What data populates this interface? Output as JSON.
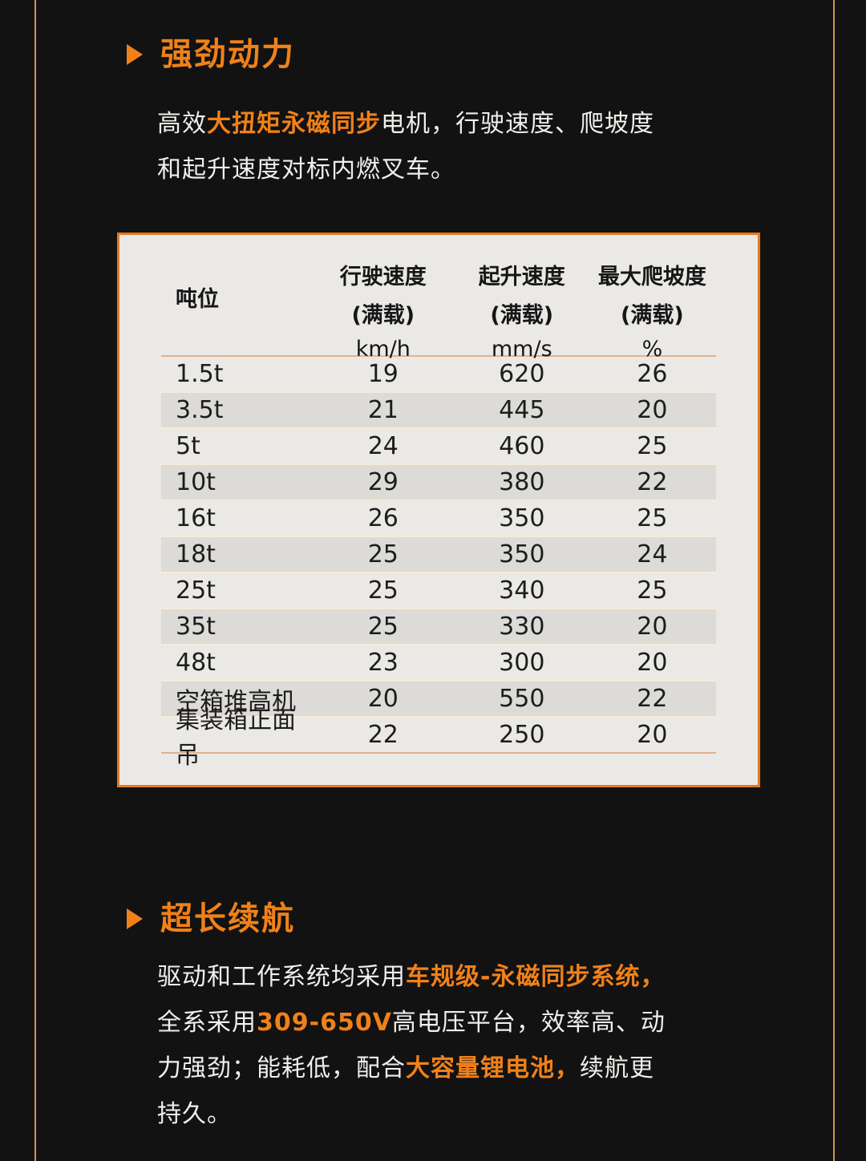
{
  "page": {
    "background_color": "#121212",
    "accent_color": "#f08119",
    "edge_line_color": "#cf9350",
    "panel_border_color": "#e5781e",
    "panel_background_color": "#ebe9e6",
    "alt_row_color": "#dcdbd8"
  },
  "sections": [
    {
      "id": "power",
      "bullet_icon": "triangle-right-icon",
      "heading": "强劲动力",
      "paragraph_lines": [
        [
          {
            "text": "高效",
            "highlight": false
          },
          {
            "text": "大扭矩永磁同步",
            "highlight": true
          },
          {
            "text": "电机，行驶速度、爬坡度",
            "highlight": false
          }
        ],
        [
          {
            "text": "和起升速度对标内燃叉车。",
            "highlight": false
          }
        ]
      ]
    },
    {
      "id": "endurance",
      "bullet_icon": "triangle-right-icon",
      "heading": "超长续航",
      "paragraph_lines": [
        [
          {
            "text": "驱动和工作系统均采用",
            "highlight": false
          },
          {
            "text": "车规级-永磁同步系统，",
            "highlight": true
          }
        ],
        [
          {
            "text": "全系采用",
            "highlight": false
          },
          {
            "text": "309-650V",
            "highlight": true
          },
          {
            "text": "高电压平台，效率高、动",
            "highlight": false
          }
        ],
        [
          {
            "text": "力强劲；能耗低，配合",
            "highlight": false
          },
          {
            "text": "大容量锂电池，",
            "highlight": true
          },
          {
            "text": "续航更",
            "highlight": false
          }
        ],
        [
          {
            "text": "持久。",
            "highlight": false
          }
        ]
      ]
    }
  ],
  "table": {
    "columns": [
      {
        "title": "吨位",
        "sub": "",
        "unit": ""
      },
      {
        "title": "行驶速度",
        "sub": "(满载)",
        "unit": "km/h"
      },
      {
        "title": "起升速度",
        "sub": "(满载)",
        "unit": "mm/s"
      },
      {
        "title": "最大爬坡度",
        "sub": "(满载)",
        "unit": "%"
      }
    ],
    "rows": [
      [
        "1.5t",
        "19",
        "620",
        "26"
      ],
      [
        "3.5t",
        "21",
        "445",
        "20"
      ],
      [
        "5t",
        "24",
        "460",
        "25"
      ],
      [
        "10t",
        "29",
        "380",
        "22"
      ],
      [
        "16t",
        "26",
        "350",
        "25"
      ],
      [
        "18t",
        "25",
        "350",
        "24"
      ],
      [
        "25t",
        "25",
        "340",
        "25"
      ],
      [
        "35t",
        "25",
        "330",
        "20"
      ],
      [
        "48t",
        "23",
        "300",
        "20"
      ],
      [
        "空箱堆高机",
        "20",
        "550",
        "22"
      ],
      [
        "集装箱正面吊",
        "22",
        "250",
        "20"
      ]
    ]
  }
}
